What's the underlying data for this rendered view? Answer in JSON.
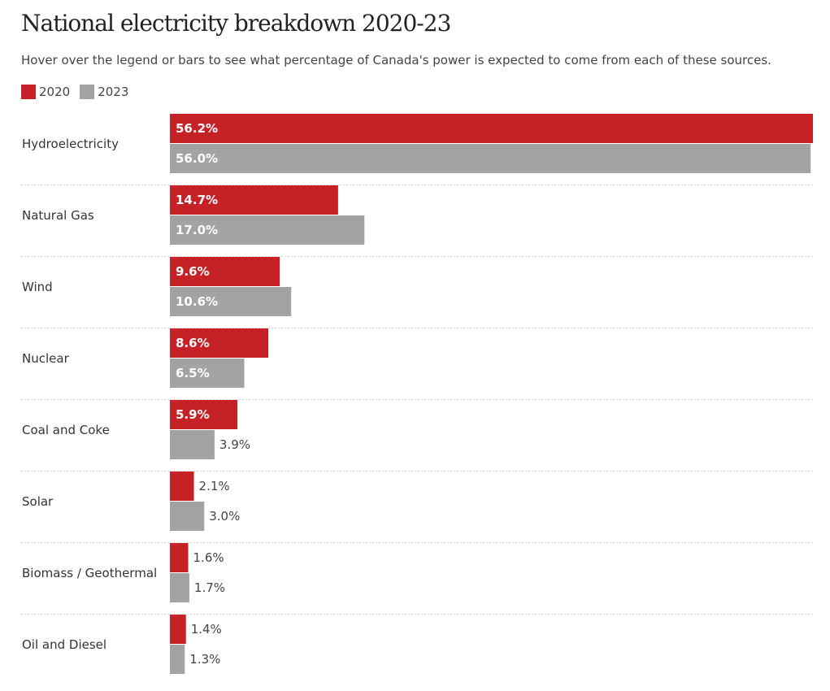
{
  "chart_data": {
    "type": "bar",
    "orientation": "horizontal",
    "title": "National electricity breakdown 2020-23",
    "subtitle": "Hover over the legend or bars to see what percentage of Canada's power is expected to come from each of these sources.",
    "categories": [
      "Hydroelectricity",
      "Natural Gas",
      "Wind",
      "Nuclear",
      "Coal and Coke",
      "Solar",
      "Biomass / Geothermal",
      "Oil and Diesel"
    ],
    "series": [
      {
        "name": "2020",
        "color": "#c62127",
        "values": [
          56.2,
          14.7,
          9.6,
          8.6,
          5.9,
          2.1,
          1.6,
          1.4
        ],
        "labels": [
          "56.2%",
          "14.7%",
          "9.6%",
          "8.6%",
          "5.9%",
          "2.1%",
          "1.6%",
          "1.4%"
        ]
      },
      {
        "name": "2023",
        "color": "#a3a3a3",
        "values": [
          56.0,
          17.0,
          10.6,
          6.5,
          3.9,
          3.0,
          1.7,
          1.3
        ],
        "labels": [
          "56.0%",
          "17.0%",
          "10.6%",
          "6.5%",
          "3.9%",
          "3.0%",
          "1.7%",
          "1.3%"
        ]
      }
    ],
    "xlim": [
      0,
      56.2
    ],
    "grid": false,
    "legend_position": "top-left"
  }
}
